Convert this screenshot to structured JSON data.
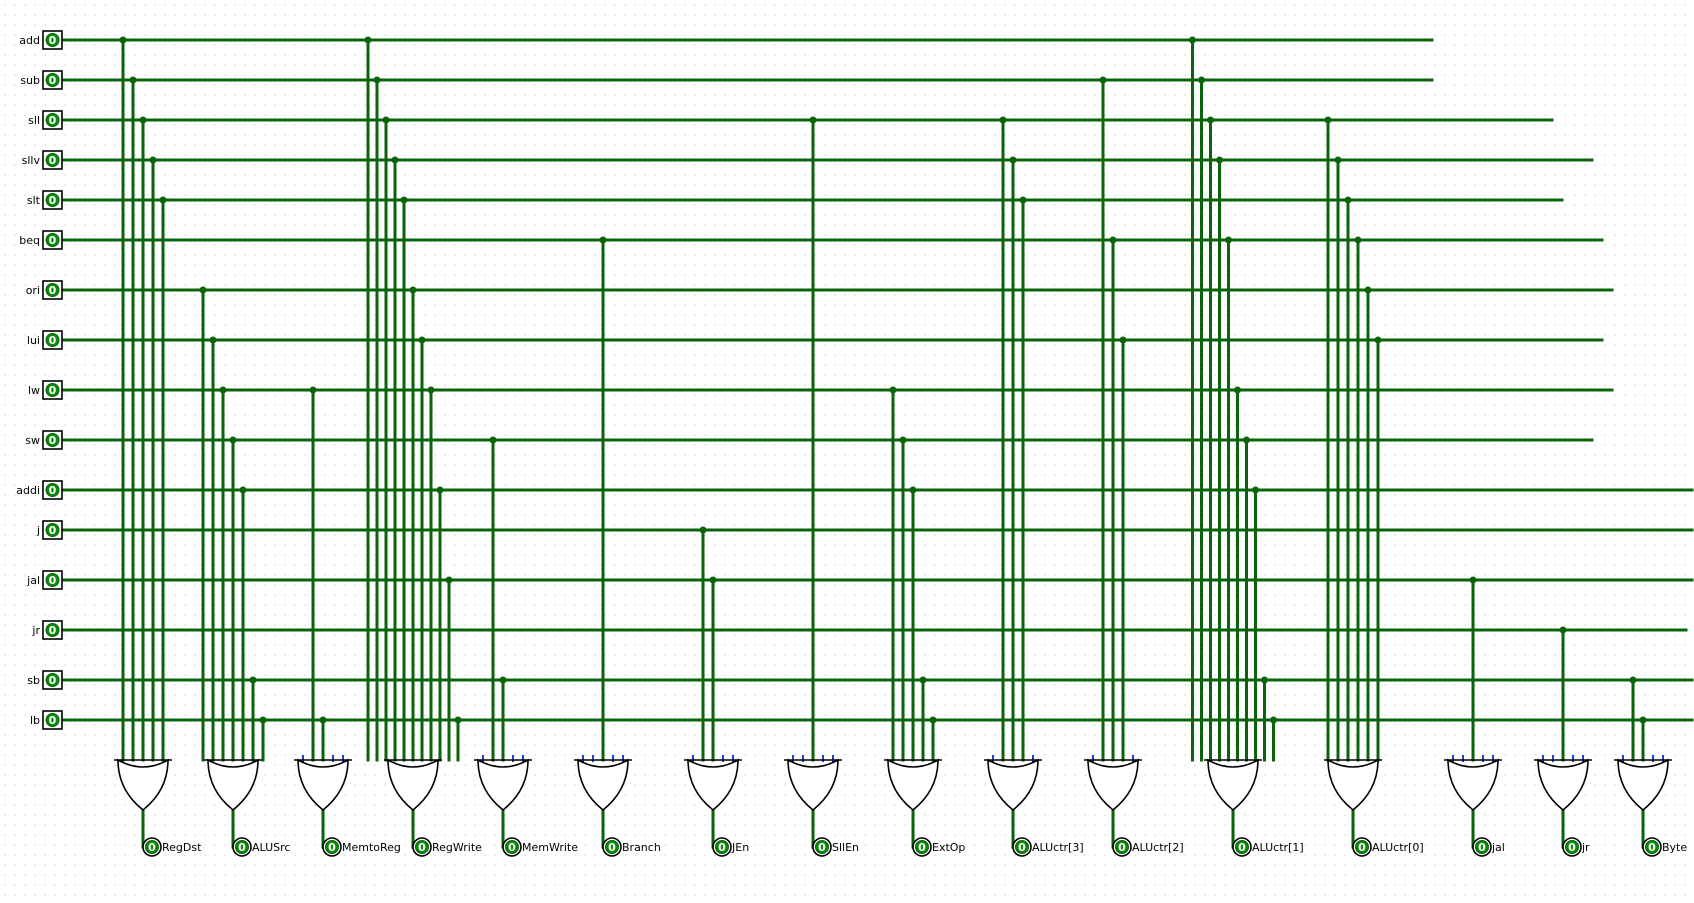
{
  "colors": {
    "wire": "#0b640b",
    "led": "#0b8a0b",
    "unused_input": "#1f3fd6",
    "grid_dot": "#c9c9c9"
  },
  "inputs": [
    {
      "id": "add",
      "label": "add",
      "value": "0"
    },
    {
      "id": "sub",
      "label": "sub",
      "value": "0"
    },
    {
      "id": "sll",
      "label": "sll",
      "value": "0"
    },
    {
      "id": "sllv",
      "label": "sllv",
      "value": "0"
    },
    {
      "id": "slt",
      "label": "slt",
      "value": "0"
    },
    {
      "id": "beq",
      "label": "beq",
      "value": "0"
    },
    {
      "id": "ori",
      "label": "ori",
      "value": "0"
    },
    {
      "id": "lui",
      "label": "lui",
      "value": "0"
    },
    {
      "id": "lw",
      "label": "lw",
      "value": "0"
    },
    {
      "id": "sw",
      "label": "sw",
      "value": "0"
    },
    {
      "id": "addi",
      "label": "addi",
      "value": "0"
    },
    {
      "id": "j",
      "label": "j",
      "value": "0"
    },
    {
      "id": "jal",
      "label": "jal",
      "value": "0"
    },
    {
      "id": "jr",
      "label": "jr",
      "value": "0"
    },
    {
      "id": "sb",
      "label": "sb",
      "value": "0"
    },
    {
      "id": "lb",
      "label": "lb",
      "value": "0"
    }
  ],
  "outputs": [
    {
      "id": "RegDst",
      "label": "RegDst",
      "value": "0",
      "sources": [
        "add",
        "sub",
        "sll",
        "sllv",
        "slt"
      ]
    },
    {
      "id": "ALUSrc",
      "label": "ALUSrc",
      "value": "0",
      "sources": [
        "ori",
        "lui",
        "lw",
        "sw",
        "addi",
        "sb",
        "lb"
      ]
    },
    {
      "id": "MemtoReg",
      "label": "MemtoReg",
      "value": "0",
      "sources": [
        "lw",
        "lb"
      ]
    },
    {
      "id": "RegWrite",
      "label": "RegWrite",
      "value": "0",
      "sources": [
        "add",
        "sub",
        "sll",
        "sllv",
        "slt",
        "ori",
        "lui",
        "lw",
        "addi",
        "jal",
        "lb"
      ]
    },
    {
      "id": "MemWrite",
      "label": "MemWrite",
      "value": "0",
      "sources": [
        "sw",
        "sb"
      ]
    },
    {
      "id": "Branch",
      "label": "Branch",
      "value": "0",
      "sources": [
        "beq"
      ]
    },
    {
      "id": "JEn",
      "label": "JEn",
      "value": "0",
      "sources": [
        "j",
        "jal"
      ]
    },
    {
      "id": "SllEn",
      "label": "SllEn",
      "value": "0",
      "sources": [
        "sll"
      ]
    },
    {
      "id": "ExtOp",
      "label": "ExtOp",
      "value": "0",
      "sources": [
        "lw",
        "sw",
        "addi",
        "sb",
        "lb"
      ]
    },
    {
      "id": "ALUctr3",
      "label": "ALUctr[3]",
      "value": "0",
      "sources": [
        "sll",
        "sllv",
        "slt"
      ]
    },
    {
      "id": "ALUctr2",
      "label": "ALUctr[2]",
      "value": "0",
      "sources": [
        "sub",
        "beq",
        "lui"
      ]
    },
    {
      "id": "ALUctr1",
      "label": "ALUctr[1]",
      "value": "0",
      "sources": [
        "add",
        "sub",
        "sll",
        "sllv",
        "beq",
        "lw",
        "sw",
        "addi",
        "sb",
        "lb"
      ]
    },
    {
      "id": "ALUctr0",
      "label": "ALUctr[0]",
      "value": "0",
      "sources": [
        "sll",
        "sllv",
        "slt",
        "beq",
        "ori",
        "lui"
      ]
    },
    {
      "id": "jal",
      "label": "jal",
      "value": "0",
      "sources": [
        "jal"
      ]
    },
    {
      "id": "jr",
      "label": "jr",
      "value": "0",
      "sources": [
        "jr"
      ]
    },
    {
      "id": "Byte",
      "label": "Byte",
      "value": "0",
      "sources": [
        "sb",
        "lb"
      ]
    }
  ]
}
